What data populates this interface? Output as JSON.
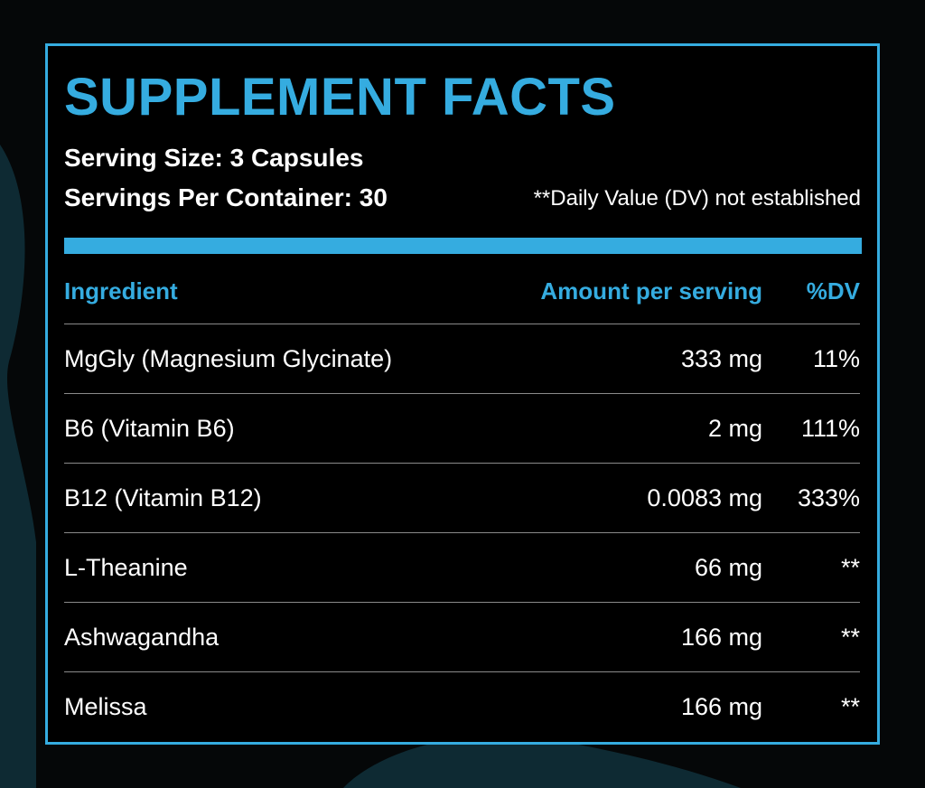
{
  "title": "SUPPLEMENT FACTS",
  "serving_size": "Serving Size: 3 Capsules",
  "servings_per_container": "Servings Per Container: 30",
  "dv_note": "**Daily Value (DV) not established",
  "colors": {
    "accent": "#35ace0",
    "background": "#000000",
    "text": "#ffffff",
    "decor": "#0e2a33"
  },
  "table": {
    "headers": {
      "ingredient": "Ingredient",
      "amount": "Amount per serving",
      "dv": "%DV"
    },
    "rows": [
      {
        "ingredient": "MgGly (Magnesium Glycinate)",
        "amount": "333 mg",
        "dv": "11%"
      },
      {
        "ingredient": "B6 (Vitamin B6)",
        "amount": "2 mg",
        "dv": "111%"
      },
      {
        "ingredient": "B12 (Vitamin B12)",
        "amount": "0.0083 mg",
        "dv": "333%"
      },
      {
        "ingredient": "L-Theanine",
        "amount": "66 mg",
        "dv": "**"
      },
      {
        "ingredient": "Ashwagandha",
        "amount": "166 mg",
        "dv": "**"
      },
      {
        "ingredient": "Melissa",
        "amount": "166 mg",
        "dv": "**"
      }
    ]
  }
}
